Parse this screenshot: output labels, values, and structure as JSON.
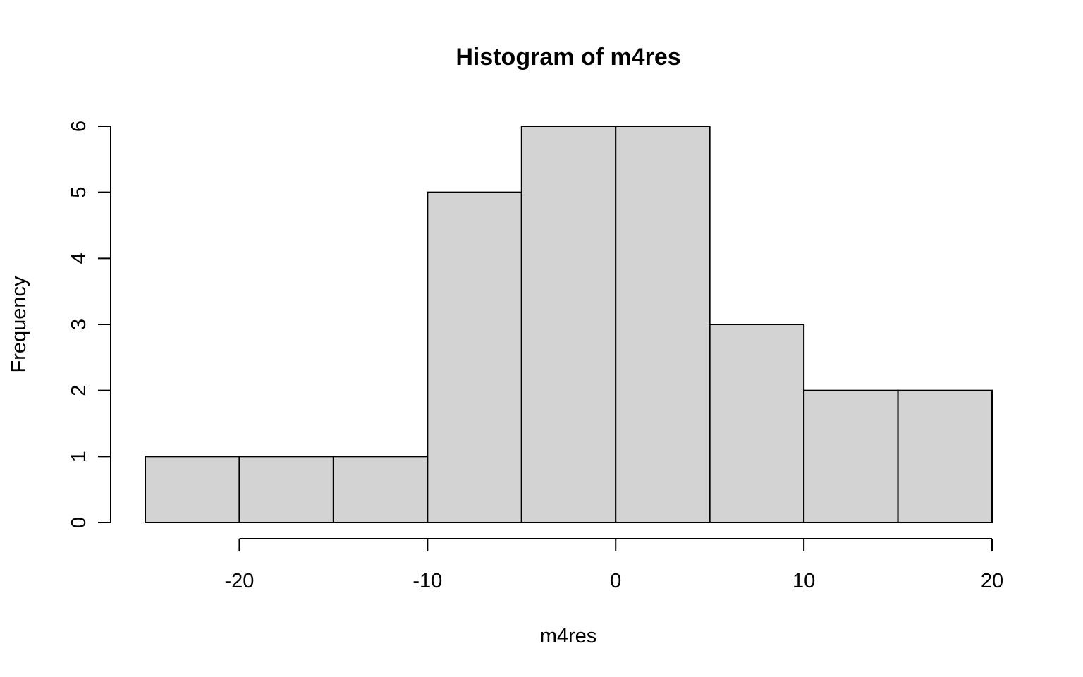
{
  "chart_data": {
    "type": "bar",
    "title": "Histogram of m4res",
    "xlabel": "m4res",
    "ylabel": "Frequency",
    "bins": [
      {
        "start": -25,
        "end": -20,
        "count": 1
      },
      {
        "start": -20,
        "end": -15,
        "count": 1
      },
      {
        "start": -15,
        "end": -10,
        "count": 1
      },
      {
        "start": -10,
        "end": -5,
        "count": 5
      },
      {
        "start": -5,
        "end": 0,
        "count": 6
      },
      {
        "start": 0,
        "end": 5,
        "count": 6
      },
      {
        "start": 5,
        "end": 10,
        "count": 3
      },
      {
        "start": 10,
        "end": 15,
        "count": 2
      },
      {
        "start": 15,
        "end": 20,
        "count": 2
      }
    ],
    "xlim": [
      -25,
      20
    ],
    "ylim": [
      0,
      6
    ],
    "x_ticks": [
      -20,
      -10,
      0,
      10,
      20
    ],
    "y_ticks": [
      0,
      1,
      2,
      3,
      4,
      5,
      6
    ],
    "bar_color": "#d3d3d3",
    "edge_color": "#000000",
    "grid": false,
    "legend": "none"
  }
}
